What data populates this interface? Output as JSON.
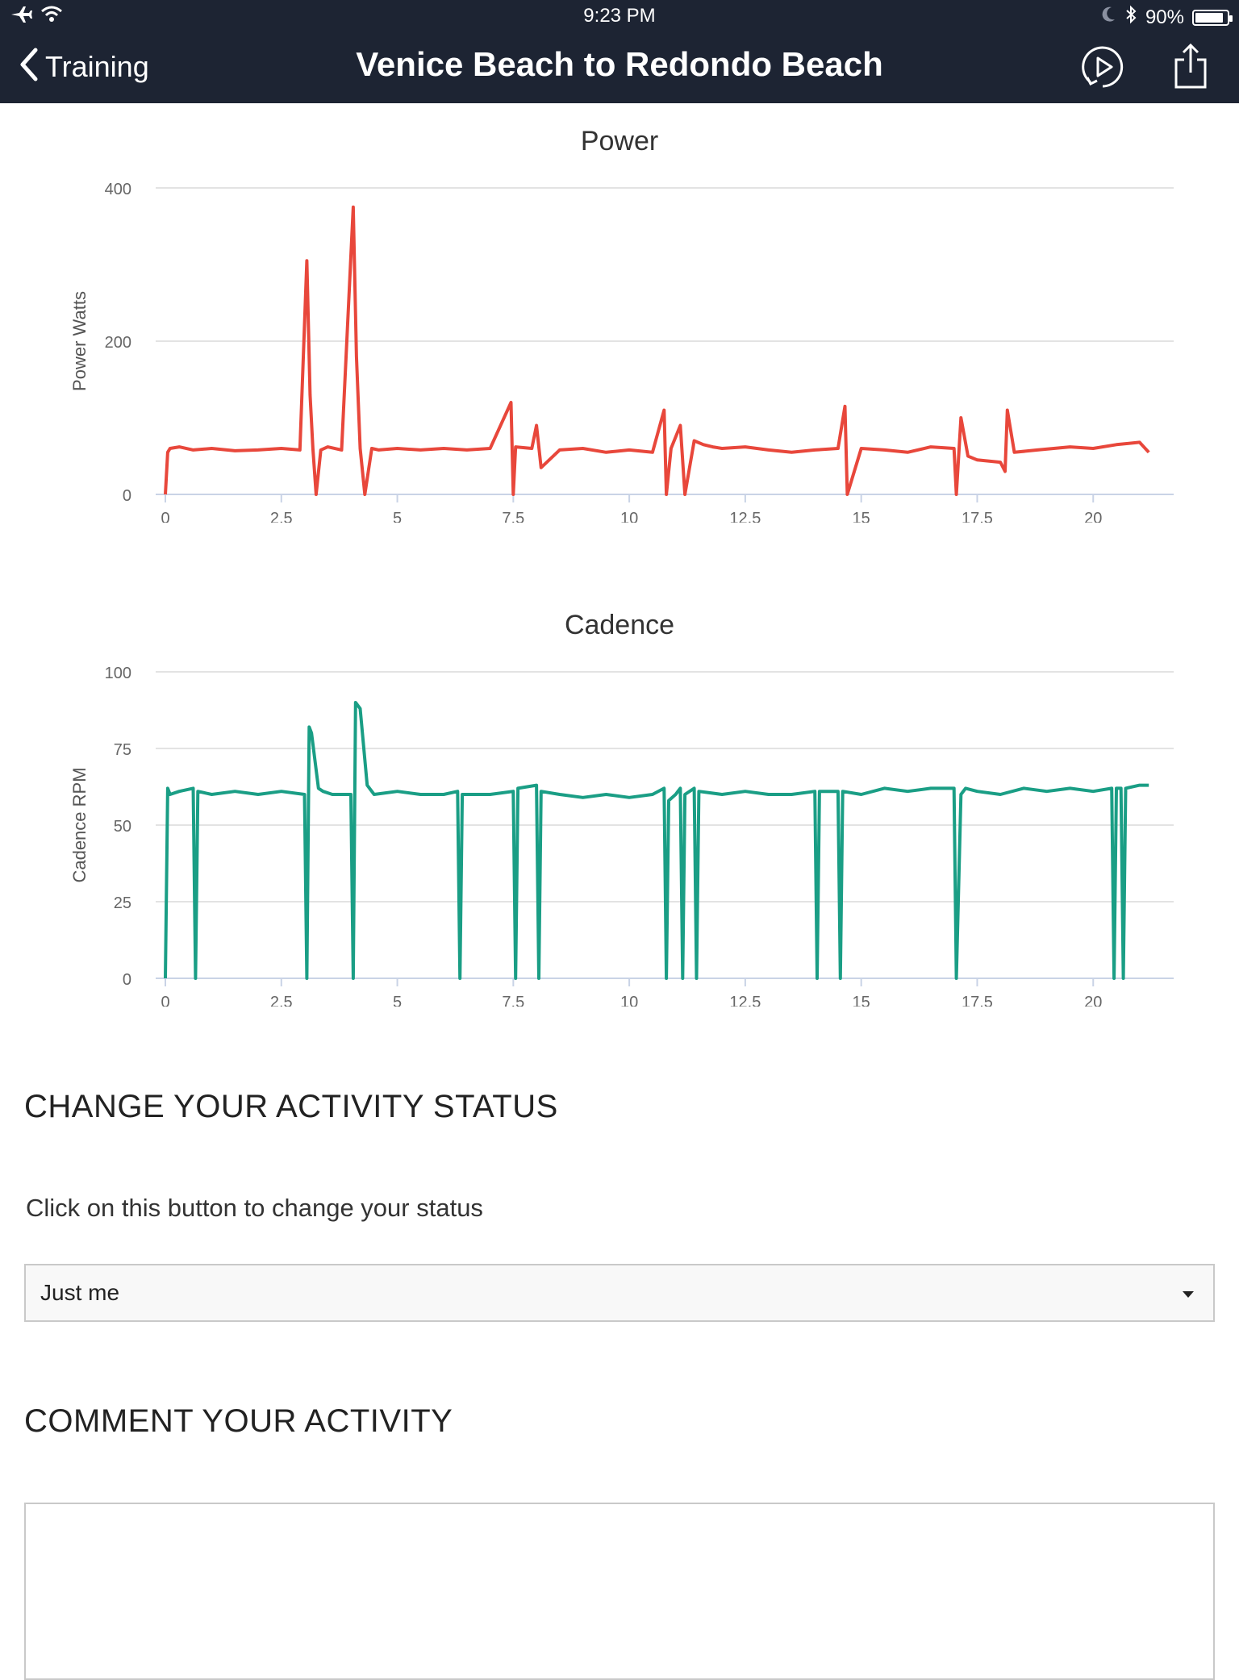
{
  "status_bar": {
    "time": "9:23 PM",
    "battery": "90%",
    "battery_level": 0.9
  },
  "nav": {
    "back_label": "Training",
    "title": "Venice Beach to Redondo Beach"
  },
  "charts": [
    {
      "title": "Power",
      "ylabel": "Power Watts",
      "color": "#e8473b"
    },
    {
      "title": "Cadence",
      "ylabel": "Cadence RPM",
      "color": "#1a9e85"
    }
  ],
  "chart_data": [
    {
      "type": "line",
      "title": "Power",
      "xlabel": "",
      "ylabel": "Power Watts",
      "xlim": [
        0,
        21.3
      ],
      "ylim": [
        0,
        400
      ],
      "x_ticks": [
        "0",
        "2.5",
        "5",
        "7.5",
        "10",
        "12.5",
        "15",
        "17.5",
        "20"
      ],
      "y_ticks": [
        "0",
        "200",
        "400"
      ],
      "grid": true,
      "series": [
        {
          "color": "#e8473b",
          "x": [
            0,
            0.05,
            0.1,
            0.3,
            0.6,
            1.0,
            1.5,
            2.0,
            2.5,
            2.9,
            3.05,
            3.12,
            3.18,
            3.25,
            3.35,
            3.5,
            3.8,
            4.05,
            4.12,
            4.2,
            4.3,
            4.45,
            4.6,
            5.0,
            5.5,
            6.0,
            6.5,
            7.0,
            7.45,
            7.5,
            7.55,
            7.9,
            8.0,
            8.1,
            8.5,
            9.0,
            9.5,
            10.0,
            10.5,
            10.75,
            10.8,
            10.9,
            11.1,
            11.2,
            11.4,
            11.6,
            11.8,
            12.0,
            12.5,
            13.0,
            13.5,
            14.0,
            14.5,
            14.65,
            14.7,
            15.0,
            15.5,
            16.0,
            16.5,
            17.0,
            17.05,
            17.15,
            17.3,
            17.5,
            18.0,
            18.1,
            18.15,
            18.3,
            18.8,
            19.5,
            20.0,
            20.5,
            21.0,
            21.2
          ],
          "y": [
            0,
            55,
            60,
            62,
            58,
            60,
            57,
            58,
            60,
            58,
            305,
            130,
            60,
            0,
            58,
            62,
            58,
            375,
            180,
            60,
            0,
            60,
            58,
            60,
            58,
            60,
            58,
            60,
            120,
            0,
            62,
            60,
            90,
            35,
            58,
            60,
            55,
            58,
            55,
            110,
            0,
            60,
            90,
            0,
            70,
            65,
            62,
            60,
            62,
            58,
            55,
            58,
            60,
            115,
            0,
            60,
            58,
            55,
            62,
            60,
            0,
            100,
            50,
            45,
            42,
            30,
            110,
            55,
            58,
            62,
            60,
            65,
            68,
            55
          ]
        }
      ]
    },
    {
      "type": "line",
      "title": "Cadence",
      "xlabel": "",
      "ylabel": "Cadence RPM",
      "xlim": [
        0,
        21.3
      ],
      "ylim": [
        0,
        100
      ],
      "x_ticks": [
        "0",
        "2.5",
        "5",
        "7.5",
        "10",
        "12.5",
        "15",
        "17.5",
        "20"
      ],
      "y_ticks": [
        "0",
        "25",
        "50",
        "75",
        "100"
      ],
      "grid": true,
      "series": [
        {
          "color": "#1a9e85",
          "x": [
            0,
            0.05,
            0.1,
            0.3,
            0.6,
            0.65,
            0.7,
            1.0,
            1.5,
            2.0,
            2.5,
            3.0,
            3.05,
            3.1,
            3.15,
            3.3,
            3.4,
            3.6,
            4.0,
            4.05,
            4.1,
            4.2,
            4.35,
            4.5,
            5.0,
            5.5,
            6.0,
            6.3,
            6.35,
            6.4,
            7.0,
            7.5,
            7.55,
            7.6,
            8.0,
            8.05,
            8.1,
            8.5,
            9.0,
            9.5,
            10.0,
            10.5,
            10.75,
            10.8,
            10.85,
            11.0,
            11.1,
            11.15,
            11.2,
            11.4,
            11.45,
            11.5,
            12.0,
            12.5,
            13.0,
            13.5,
            14.0,
            14.05,
            14.1,
            14.5,
            14.55,
            14.6,
            15.0,
            15.5,
            16.0,
            16.5,
            17.0,
            17.05,
            17.15,
            17.25,
            17.5,
            18.0,
            18.5,
            19.0,
            19.5,
            20.0,
            20.4,
            20.45,
            20.5,
            20.6,
            20.65,
            20.7,
            21.0,
            21.2
          ],
          "y": [
            0,
            62,
            60,
            61,
            62,
            0,
            61,
            60,
            61,
            60,
            61,
            60,
            0,
            82,
            80,
            62,
            61,
            60,
            60,
            0,
            90,
            88,
            63,
            60,
            61,
            60,
            60,
            61,
            0,
            60,
            60,
            61,
            0,
            62,
            63,
            0,
            61,
            60,
            59,
            60,
            59,
            60,
            62,
            0,
            58,
            60,
            62,
            0,
            60,
            62,
            0,
            61,
            60,
            61,
            60,
            60,
            61,
            0,
            61,
            61,
            0,
            61,
            60,
            62,
            61,
            62,
            62,
            0,
            60,
            62,
            61,
            60,
            62,
            61,
            62,
            61,
            62,
            0,
            62,
            62,
            0,
            62,
            63,
            63
          ]
        }
      ]
    }
  ],
  "status_section": {
    "heading": "CHANGE YOUR ACTIVITY STATUS",
    "helper": "Click on this button to change your status",
    "selected": "Just me"
  },
  "comment_section": {
    "heading": "COMMENT YOUR ACTIVITY"
  },
  "icons": {
    "airplane": "airplane-icon",
    "wifi": "wifi-icon",
    "moon": "moon-icon",
    "bluetooth": "bluetooth-icon",
    "battery": "battery-icon",
    "back": "chevron-left-icon",
    "replay": "play-replay-icon",
    "share": "share-icon",
    "caret": "caret-down-icon"
  }
}
